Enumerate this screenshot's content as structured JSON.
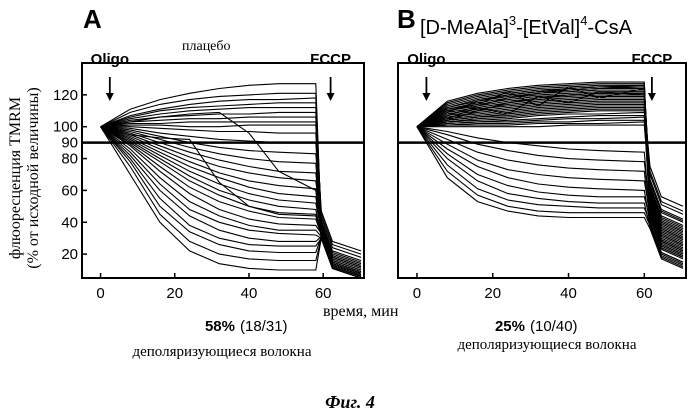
{
  "figure": {
    "caption": "Фиг. 4",
    "shared_ylabel_line1": "флюоресценция TMRM",
    "shared_ylabel_line2": "(% от исходной величины)",
    "shared_xlabel": "время, мин"
  },
  "chart_data": [
    {
      "type": "line",
      "panel_letter": "A",
      "subtitle": "плацебо",
      "title": "",
      "xlabel": "время, мин",
      "ylabel": "флюоресценция TMRM (% от исходной величины)",
      "xlim": [
        -5,
        71
      ],
      "ylim": [
        5,
        140
      ],
      "xticks": [
        0,
        20,
        40,
        60
      ],
      "yticks": [
        20,
        40,
        60,
        80,
        90,
        100,
        120
      ],
      "threshold_line": 90,
      "annotations": [
        {
          "label": "Oligo",
          "x": 2.5
        },
        {
          "label": "FCCP",
          "x": 62
        }
      ],
      "result_percent": "58%",
      "result_count": "(18/31)",
      "result_caption": "деполяризующиеся волокна",
      "fccp_time": 58,
      "series": [
        {
          "values": [
            100,
            111,
            117,
            121,
            124,
            126,
            127,
            127
          ],
          "final": 10
        },
        {
          "values": [
            100,
            109,
            114,
            117,
            119,
            120,
            121,
            121
          ],
          "final": 12
        },
        {
          "values": [
            100,
            107,
            111,
            114,
            116,
            117,
            117,
            118
          ],
          "final": 8
        },
        {
          "values": [
            100,
            106,
            110,
            112,
            113,
            114,
            115,
            115
          ],
          "final": 14
        },
        {
          "values": [
            100,
            105,
            108,
            110,
            111,
            112,
            112,
            112
          ],
          "final": 18
        },
        {
          "values": [
            100,
            104,
            106,
            107,
            108,
            108,
            109,
            109
          ],
          "final": 6
        },
        {
          "values": [
            100,
            103,
            104,
            105,
            105,
            106,
            106,
            106
          ],
          "final": 20
        },
        {
          "values": [
            100,
            102,
            102,
            103,
            103,
            103,
            103,
            103
          ],
          "final": 22
        },
        {
          "values": [
            100,
            101,
            101,
            100,
            100,
            101,
            101,
            101
          ],
          "final": 15
        },
        {
          "values": [
            100,
            100,
            99,
            98,
            97,
            97,
            96,
            96
          ],
          "final": 9
        },
        {
          "values": [
            100,
            99,
            96,
            94,
            92,
            91,
            90,
            90
          ],
          "final": 12
        },
        {
          "values": [
            100,
            98,
            94,
            90,
            87,
            85,
            84,
            83
          ],
          "final": 16
        },
        {
          "values": [
            100,
            97,
            92,
            87,
            83,
            80,
            78,
            77
          ],
          "final": 7
        },
        {
          "values": [
            100,
            96,
            90,
            84,
            79,
            75,
            72,
            71
          ],
          "final": 11
        },
        {
          "values": [
            100,
            95,
            88,
            81,
            75,
            71,
            68,
            66
          ],
          "final": 13
        },
        {
          "values": [
            100,
            94,
            86,
            78,
            71,
            66,
            63,
            61
          ],
          "final": 5
        },
        {
          "values": [
            100,
            93,
            84,
            75,
            68,
            62,
            58,
            56
          ],
          "final": 8
        },
        {
          "values": [
            100,
            92,
            82,
            72,
            64,
            58,
            54,
            52
          ],
          "final": 10
        },
        {
          "values": [
            100,
            91,
            80,
            69,
            60,
            54,
            50,
            48
          ],
          "final": 6
        },
        {
          "values": [
            100,
            90,
            78,
            66,
            57,
            50,
            46,
            45
          ],
          "final": 9
        },
        {
          "values": [
            100,
            89,
            75,
            62,
            53,
            47,
            43,
            42
          ],
          "final": 7
        },
        {
          "values": [
            100,
            88,
            72,
            58,
            48,
            42,
            39,
            38
          ],
          "final": 8
        },
        {
          "values": [
            100,
            86,
            68,
            53,
            44,
            38,
            35,
            35
          ],
          "final": 6
        },
        {
          "values": [
            100,
            84,
            64,
            48,
            40,
            35,
            33,
            32
          ],
          "final": 5
        },
        {
          "values": [
            100,
            82,
            60,
            44,
            35,
            30,
            28,
            28
          ],
          "final": 6
        },
        {
          "values": [
            100,
            80,
            55,
            38,
            30,
            26,
            25,
            25
          ],
          "final": 5
        },
        {
          "values": [
            100,
            78,
            50,
            34,
            26,
            22,
            21,
            21
          ],
          "final": 6
        },
        {
          "values": [
            100,
            75,
            45,
            28,
            20,
            17,
            16,
            16
          ],
          "final": 5
        },
        {
          "values": [
            100,
            70,
            40,
            22,
            14,
            11,
            10,
            10
          ],
          "final": 5
        },
        {
          "values": [
            100,
            95,
            93,
            92,
            65,
            50,
            45,
            44
          ],
          "final": 8
        },
        {
          "values": [
            100,
            103,
            106,
            108,
            109,
            96,
            72,
            60
          ],
          "final": 7
        }
      ],
      "x": [
        0,
        8,
        16,
        24,
        32,
        40,
        48,
        58
      ]
    },
    {
      "type": "line",
      "panel_letter": "B",
      "title": "[D-MeAla]3-[EtVal]4-CsA",
      "title_main_1": "[D-MeAla]",
      "title_sup_1": "3",
      "title_mid": "-[EtVal]",
      "title_sup_2": "4",
      "title_end": "-CsA",
      "xlabel": "время, мин",
      "ylabel": "флюоресценция TMRM (% от исходной величины)",
      "xlim": [
        -5,
        71
      ],
      "ylim": [
        5,
        140
      ],
      "xticks": [
        0,
        20,
        40,
        60
      ],
      "yticks": [],
      "threshold_line": 90,
      "annotations": [
        {
          "label": "Oligo",
          "x": 2.5
        },
        {
          "label": "FCCP",
          "x": 62
        }
      ],
      "result_percent": "25%",
      "result_count": "(10/40)",
      "result_caption": "деполяризующиеся волокна",
      "fccp_time": 60,
      "series": [
        {
          "values": [
            100,
            116,
            121,
            124,
            126,
            127,
            128,
            128
          ],
          "final": 20
        },
        {
          "values": [
            100,
            115,
            120,
            123,
            125,
            126,
            127,
            127
          ],
          "final": 25
        },
        {
          "values": [
            100,
            114,
            119,
            122,
            124,
            125,
            126,
            126
          ],
          "final": 30
        },
        {
          "values": [
            100,
            113,
            118,
            121,
            123,
            124,
            125,
            125
          ],
          "final": 22
        },
        {
          "values": [
            100,
            112,
            117,
            120,
            122,
            123,
            124,
            124
          ],
          "final": 35
        },
        {
          "values": [
            100,
            112,
            116,
            119,
            121,
            122,
            123,
            123
          ],
          "final": 28
        },
        {
          "values": [
            100,
            111,
            115,
            118,
            120,
            121,
            122,
            122
          ],
          "final": 40
        },
        {
          "values": [
            100,
            110,
            114,
            117,
            119,
            120,
            121,
            121
          ],
          "final": 18
        },
        {
          "values": [
            100,
            110,
            113,
            116,
            118,
            119,
            120,
            120
          ],
          "final": 32
        },
        {
          "values": [
            100,
            109,
            112,
            115,
            117,
            118,
            119,
            119
          ],
          "final": 26
        },
        {
          "values": [
            100,
            108,
            111,
            114,
            116,
            117,
            118,
            118
          ],
          "final": 45
        },
        {
          "values": [
            100,
            108,
            111,
            113,
            115,
            116,
            117,
            117
          ],
          "final": 24
        },
        {
          "values": [
            100,
            107,
            110,
            112,
            114,
            115,
            116,
            116
          ],
          "final": 38
        },
        {
          "values": [
            100,
            106,
            109,
            111,
            113,
            114,
            115,
            115
          ],
          "final": 29
        },
        {
          "values": [
            100,
            106,
            108,
            110,
            112,
            113,
            114,
            114
          ],
          "final": 50
        },
        {
          "values": [
            100,
            105,
            107,
            109,
            111,
            112,
            113,
            113
          ],
          "final": 21
        },
        {
          "values": [
            100,
            104,
            106,
            108,
            110,
            111,
            112,
            112
          ],
          "final": 33
        },
        {
          "values": [
            100,
            104,
            106,
            107,
            109,
            110,
            111,
            111
          ],
          "final": 27
        },
        {
          "values": [
            100,
            103,
            105,
            106,
            108,
            109,
            110,
            110
          ],
          "final": 42
        },
        {
          "values": [
            100,
            103,
            104,
            105,
            107,
            108,
            108,
            109
          ],
          "final": 19
        },
        {
          "values": [
            100,
            102,
            103,
            104,
            105,
            106,
            107,
            107
          ],
          "final": 31
        },
        {
          "values": [
            100,
            102,
            103,
            103,
            104,
            105,
            105,
            106
          ],
          "final": 36
        },
        {
          "values": [
            100,
            101,
            102,
            102,
            103,
            103,
            104,
            104
          ],
          "final": 23
        },
        {
          "values": [
            100,
            101,
            101,
            101,
            102,
            102,
            102,
            103
          ],
          "final": 47
        },
        {
          "values": [
            100,
            100,
            100,
            100,
            100,
            101,
            101,
            101
          ],
          "final": 34
        },
        {
          "values": [
            100,
            104,
            110,
            115,
            118,
            120,
            121,
            121
          ],
          "final": 30
        },
        {
          "values": [
            100,
            107,
            113,
            118,
            121,
            123,
            124,
            125
          ],
          "final": 37
        },
        {
          "values": [
            100,
            109,
            116,
            120,
            122,
            124,
            125,
            126
          ],
          "final": 22
        },
        {
          "values": [
            100,
            111,
            114,
            122,
            113,
            125,
            118,
            124
          ],
          "final": 41
        },
        {
          "values": [
            100,
            105,
            112,
            108,
            119,
            115,
            122,
            120
          ],
          "final": 26
        },
        {
          "values": [
            100,
            97,
            93,
            90,
            88,
            86,
            85,
            84
          ],
          "final": 18
        },
        {
          "values": [
            100,
            95,
            89,
            85,
            82,
            80,
            79,
            78
          ],
          "final": 22
        },
        {
          "values": [
            100,
            92,
            84,
            79,
            76,
            74,
            73,
            72
          ],
          "final": 15
        },
        {
          "values": [
            100,
            89,
            79,
            73,
            70,
            68,
            67,
            66
          ],
          "final": 20
        },
        {
          "values": [
            100,
            86,
            75,
            68,
            64,
            62,
            61,
            60
          ],
          "final": 14
        },
        {
          "values": [
            100,
            83,
            70,
            63,
            59,
            57,
            56,
            56
          ],
          "final": 17
        },
        {
          "values": [
            100,
            80,
            66,
            58,
            55,
            53,
            52,
            52
          ],
          "final": 12
        },
        {
          "values": [
            100,
            76,
            61,
            54,
            51,
            50,
            49,
            49
          ],
          "final": 15
        },
        {
          "values": [
            100,
            72,
            57,
            50,
            47,
            46,
            46,
            46
          ],
          "final": 13
        },
        {
          "values": [
            100,
            68,
            53,
            47,
            44,
            43,
            43,
            43
          ],
          "final": 11
        }
      ],
      "x": [
        0,
        8,
        16,
        24,
        32,
        40,
        48,
        60
      ]
    }
  ]
}
